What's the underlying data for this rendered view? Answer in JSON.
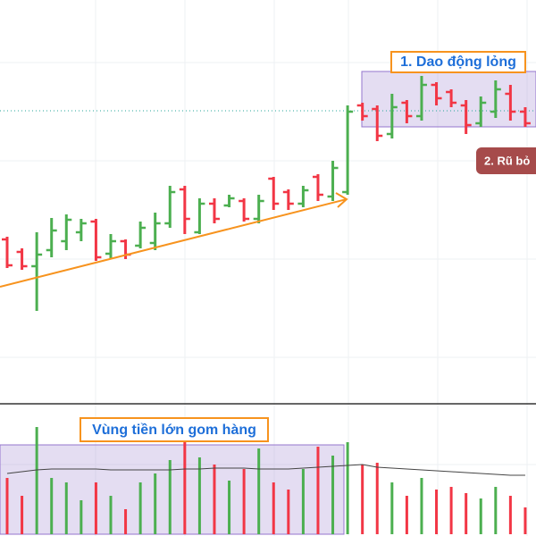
{
  "chart_data": {
    "type": "ohlc",
    "up_color": "#4caf50",
    "down_color": "#f23645",
    "ylim": [
      0,
      445
    ],
    "open": [
      177,
      163,
      147,
      165,
      175,
      185,
      197,
      161,
      175,
      170,
      173,
      195,
      233,
      185,
      217,
      215,
      220,
      200,
      245,
      230,
      217,
      247,
      225,
      230,
      327,
      323,
      295,
      330,
      315,
      350,
      342,
      327,
      307,
      320,
      340,
      320
    ],
    "high": [
      180,
      167,
      185,
      201,
      205,
      200,
      200,
      183,
      177,
      197,
      207,
      237,
      237,
      223,
      223,
      227,
      223,
      227,
      247,
      233,
      237,
      250,
      265,
      327,
      330,
      327,
      340,
      333,
      360,
      353,
      345,
      333,
      337,
      355,
      350,
      325
    ],
    "low": [
      145,
      143,
      97,
      157,
      165,
      175,
      153,
      155,
      155,
      167,
      165,
      190,
      183,
      183,
      195,
      213,
      197,
      195,
      210,
      210,
      213,
      220,
      220,
      227,
      310,
      287,
      290,
      307,
      310,
      327,
      325,
      295,
      303,
      313,
      310,
      303
    ],
    "close": [
      148,
      147,
      160,
      187,
      199,
      195,
      157,
      175,
      160,
      190,
      195,
      230,
      200,
      217,
      200,
      223,
      200,
      220,
      217,
      217,
      232,
      227,
      257,
      320,
      315,
      293,
      325,
      315,
      350,
      335,
      330,
      305,
      330,
      345,
      320,
      307
    ],
    "reference_line": 321,
    "volume_ylim": [
      0,
      120
    ],
    "volume": [
      63,
      43,
      120,
      63,
      58,
      38,
      58,
      43,
      28,
      58,
      68,
      83,
      110,
      86,
      78,
      60,
      73,
      96,
      58,
      50,
      73,
      98,
      88,
      103,
      78,
      80,
      58,
      43,
      63,
      50,
      53,
      46,
      40,
      53,
      43,
      30
    ],
    "volume_ma": [
      68,
      70,
      72,
      73,
      73,
      73,
      73,
      72,
      72,
      72,
      72,
      72,
      73,
      73,
      74,
      74,
      74,
      73,
      73,
      73,
      74,
      75,
      76,
      77,
      78,
      75,
      74,
      73,
      72,
      71,
      70,
      69,
      68,
      67,
      66,
      66
    ],
    "annotations": [
      "1. Dao động lỏng",
      "2. Rũ bỏ",
      "Vùng tiền lớn gom hàng"
    ]
  }
}
